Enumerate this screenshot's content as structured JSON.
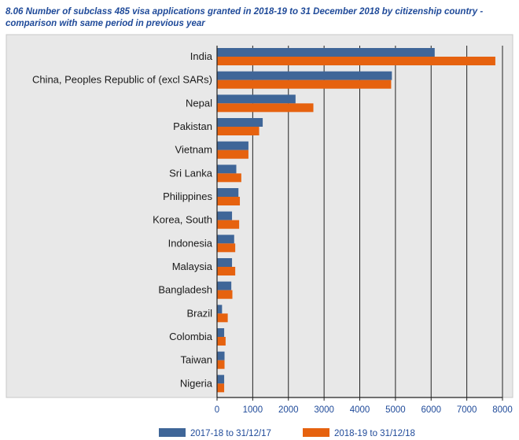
{
  "chart_data": {
    "type": "bar",
    "orientation": "horizontal",
    "title": "8.06 Number of subclass 485 visa applications granted in 2018-19 to 31 December 2018 by citizenship country - comparison with same period in previous year",
    "categories": [
      "India",
      "China, Peoples Republic of (excl SARs)",
      "Nepal",
      "Pakistan",
      "Vietnam",
      "Sri Lanka",
      "Philippines",
      "Korea, South",
      "Indonesia",
      "Malaysia",
      "Bangladesh",
      "Brazil",
      "Colombia",
      "Taiwan",
      "Nigeria"
    ],
    "series": [
      {
        "name": "2017-18 to 31/12/17",
        "color": "#3f6698",
        "values": [
          6100,
          4900,
          2200,
          1280,
          880,
          540,
          600,
          420,
          480,
          420,
          400,
          140,
          200,
          210,
          200
        ]
      },
      {
        "name": "2018-19 to 31/12/18",
        "color": "#e6620f",
        "values": [
          7800,
          4880,
          2700,
          1180,
          880,
          680,
          640,
          620,
          510,
          510,
          430,
          300,
          240,
          210,
          200
        ]
      }
    ],
    "xlim": [
      0,
      8000
    ],
    "xticks": [
      0,
      1000,
      2000,
      3000,
      4000,
      5000,
      6000,
      7000,
      8000
    ],
    "xlabel": "",
    "ylabel": "",
    "grid": true,
    "legend_position": "bottom",
    "plot_background": "#e8e8e8"
  }
}
